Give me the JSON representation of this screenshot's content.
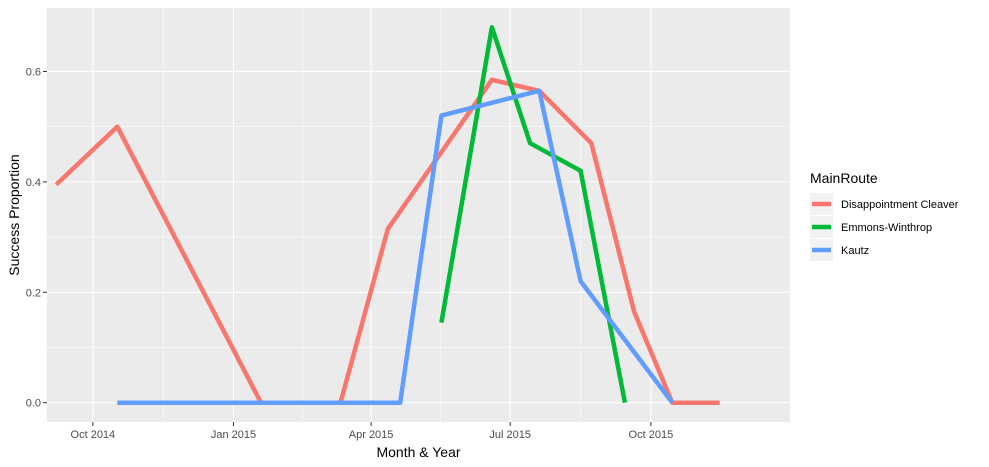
{
  "chart_data": {
    "type": "line",
    "xlabel": "Month & Year",
    "ylabel": "Success Proportion",
    "x_axis_type": "date",
    "x_range": [
      "2014-09-01",
      "2015-12-31"
    ],
    "ylim": [
      -0.035,
      0.715
    ],
    "x_ticks": [
      {
        "date": "2014-10-01",
        "label": "Oct 2014"
      },
      {
        "date": "2015-01-01",
        "label": "Jan 2015"
      },
      {
        "date": "2015-04-01",
        "label": "Apr 2015"
      },
      {
        "date": "2015-07-01",
        "label": "Jul 2015"
      },
      {
        "date": "2015-10-01",
        "label": "Oct 2015"
      }
    ],
    "y_ticks": [
      {
        "value": 0.0,
        "label": "0.0"
      },
      {
        "value": 0.2,
        "label": "0.2"
      },
      {
        "value": 0.4,
        "label": "0.4"
      },
      {
        "value": 0.6,
        "label": "0.6"
      }
    ],
    "grid": true,
    "legend": {
      "title": "MainRoute",
      "position": "right"
    },
    "series": [
      {
        "name": "Disappointment Cleaver",
        "color": "#F8766D",
        "points": [
          {
            "x": "2014-09-07",
            "y": 0.395
          },
          {
            "x": "2014-10-17",
            "y": 0.5
          },
          {
            "x": "2015-01-19",
            "y": 0.0
          },
          {
            "x": "2015-03-12",
            "y": 0.0
          },
          {
            "x": "2015-04-12",
            "y": 0.315
          },
          {
            "x": "2015-06-19",
            "y": 0.585
          },
          {
            "x": "2015-07-20",
            "y": 0.565
          },
          {
            "x": "2015-08-23",
            "y": 0.47
          },
          {
            "x": "2015-09-20",
            "y": 0.165
          },
          {
            "x": "2015-10-15",
            "y": 0.0
          },
          {
            "x": "2015-11-15",
            "y": 0.0
          }
        ]
      },
      {
        "name": "Emmons-Winthrop",
        "color": "#00BA38",
        "points": [
          {
            "x": "2015-05-17",
            "y": 0.145
          },
          {
            "x": "2015-06-19",
            "y": 0.68
          },
          {
            "x": "2015-07-14",
            "y": 0.47
          },
          {
            "x": "2015-08-16",
            "y": 0.42
          },
          {
            "x": "2015-09-14",
            "y": 0.0
          }
        ]
      },
      {
        "name": "Kautz",
        "color": "#619CFF",
        "points": [
          {
            "x": "2014-10-17",
            "y": 0.0
          },
          {
            "x": "2015-04-20",
            "y": 0.0
          },
          {
            "x": "2015-05-17",
            "y": 0.52
          },
          {
            "x": "2015-07-20",
            "y": 0.565
          },
          {
            "x": "2015-08-16",
            "y": 0.22
          },
          {
            "x": "2015-10-15",
            "y": 0.0
          }
        ]
      }
    ]
  }
}
